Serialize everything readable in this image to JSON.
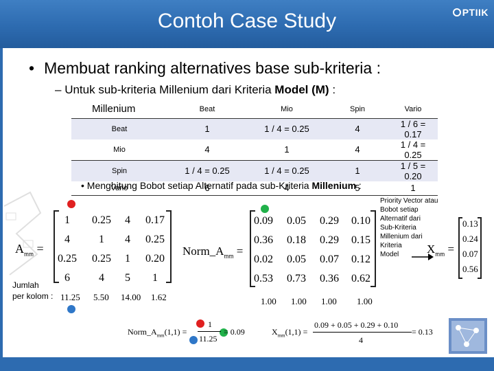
{
  "header": {
    "title": "Contoh Case Study",
    "logo_text": "PTIIK"
  },
  "bullets": {
    "main": "Membuat ranking alternatives base sub-kriteria :",
    "sub_prefix": "Untuk sub-kriteria Millenium dari Kriteria ",
    "sub_bold": "Model (M)",
    "sub_suffix": " :",
    "compute_prefix": "Menghitung Bobot setiap Alternatif pada sub-Kriteria ",
    "compute_bold": "Millenium",
    "compute_suffix": " :"
  },
  "table": {
    "corner": "Millenium",
    "columns": [
      "Beat",
      "Mio",
      "Spin",
      "Vario"
    ],
    "rows": [
      {
        "label": "Beat",
        "cells": [
          "1",
          "1 / 4 = 0.25",
          "4",
          "1 / 6 = 0.17"
        ]
      },
      {
        "label": "Mio",
        "cells": [
          "4",
          "1",
          "4",
          "1 / 4 = 0.25"
        ]
      },
      {
        "label": "Spin",
        "cells": [
          "1 / 4 = 0.25",
          "1 / 4 = 0.25",
          "1",
          "1 / 5 = 0.20"
        ]
      },
      {
        "label": "Vario",
        "cells": [
          "6",
          "4",
          "5",
          "1"
        ]
      }
    ]
  },
  "matrix_a": {
    "label": "A",
    "sub": "mm",
    "rows": [
      [
        "1",
        "0.25",
        "4",
        "0.17"
      ],
      [
        "4",
        "1",
        "4",
        "0.25"
      ],
      [
        "0.25",
        "0.25",
        "1",
        "0.20"
      ],
      [
        "6",
        "4",
        "5",
        "1"
      ]
    ],
    "sum_label_1": "Jumlah",
    "sum_label_2": "per kolom :",
    "sums": [
      "11.25",
      "5.50",
      "14.00",
      "1.62"
    ]
  },
  "matrix_norm": {
    "label": "Norm_A",
    "sub": "mm",
    "rows": [
      [
        "0.09",
        "0.05",
        "0.29",
        "0.10"
      ],
      [
        "0.36",
        "0.18",
        "0.29",
        "0.15"
      ],
      [
        "0.02",
        "0.05",
        "0.07",
        "0.12"
      ],
      [
        "0.53",
        "0.73",
        "0.36",
        "0.62"
      ]
    ],
    "sums": [
      "1.00",
      "1.00",
      "1.00",
      "1.00"
    ]
  },
  "priority": {
    "note": [
      "Priority Vector atau",
      "Bobot setiap",
      "Alternatif dari",
      "Sub-Kriteria",
      "Millenium dari",
      "Kriteria",
      "Model"
    ],
    "label": "X",
    "sub": "mm",
    "values": [
      "0.13",
      "0.24",
      "0.07",
      "0.56"
    ]
  },
  "formulas": {
    "norm_lhs": "Norm_A",
    "norm_sub": "mm",
    "norm_idx": "(1,1)",
    "norm_num": "1",
    "norm_den": "11.25",
    "norm_res": "= 0.09",
    "x_lhs": "X",
    "x_sub": "mm",
    "x_idx": "(1,1)",
    "x_num": "0.09 + 0.05 + 0.29 + 0.10",
    "x_den": "4",
    "x_res": "= 0.13"
  },
  "colors": {
    "red": "#e02020",
    "green": "#21b14a",
    "blue": "#2f77c8"
  }
}
